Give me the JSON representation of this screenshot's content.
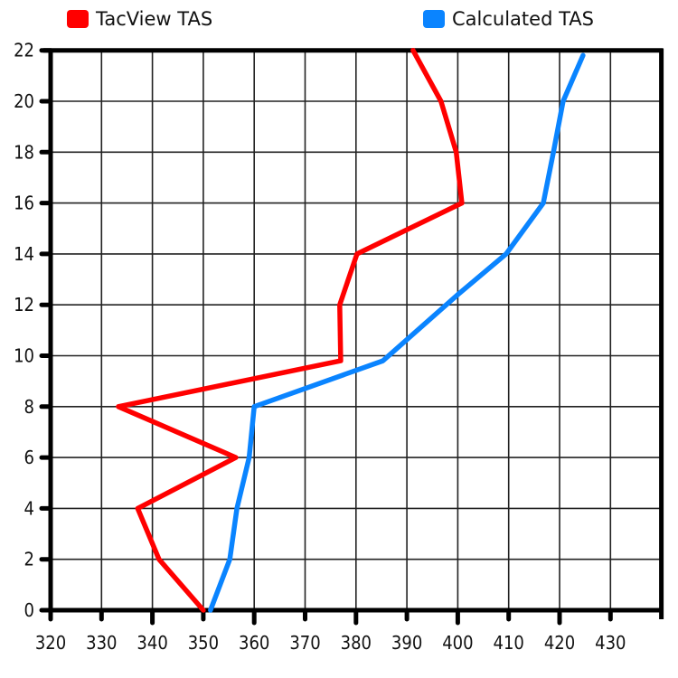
{
  "chart_data": {
    "type": "line",
    "title": "",
    "xlabel": "",
    "ylabel": "",
    "xlim": [
      320,
      440
    ],
    "ylim": [
      0,
      22
    ],
    "x_ticks": [
      320,
      330,
      340,
      350,
      360,
      370,
      380,
      390,
      400,
      410,
      420,
      430
    ],
    "y_ticks": [
      0,
      2,
      4,
      6,
      8,
      10,
      12,
      14,
      16,
      18,
      20,
      22
    ],
    "grid": true,
    "legend_position": "top",
    "series": [
      {
        "name": "TacView TAS",
        "color": "#ff0000",
        "points": [
          {
            "x": 350,
            "y": 0
          },
          {
            "x": 341.3,
            "y": 2
          },
          {
            "x": 337.1,
            "y": 4
          },
          {
            "x": 356.4,
            "y": 6
          },
          {
            "x": 333.3,
            "y": 8
          },
          {
            "x": 377,
            "y": 9.8
          },
          {
            "x": 376.8,
            "y": 12
          },
          {
            "x": 380.2,
            "y": 14
          },
          {
            "x": 400.8,
            "y": 16
          },
          {
            "x": 399.7,
            "y": 18
          },
          {
            "x": 396.7,
            "y": 20
          },
          {
            "x": 391.2,
            "y": 22
          }
        ]
      },
      {
        "name": "Calculated TAS",
        "color": "#0a84ff",
        "points": [
          {
            "x": 351.4,
            "y": 0
          },
          {
            "x": 355.2,
            "y": 2
          },
          {
            "x": 356.6,
            "y": 4
          },
          {
            "x": 359,
            "y": 6
          },
          {
            "x": 360,
            "y": 8
          },
          {
            "x": 385.3,
            "y": 9.8
          },
          {
            "x": 400,
            "y": 12.4
          },
          {
            "x": 409.5,
            "y": 14
          },
          {
            "x": 416.8,
            "y": 16
          },
          {
            "x": 418.8,
            "y": 18
          },
          {
            "x": 420.7,
            "y": 20
          },
          {
            "x": 424.6,
            "y": 21.8
          }
        ]
      }
    ]
  },
  "legend": {
    "items": [
      {
        "label": "TacView TAS",
        "color": "#ff0000"
      },
      {
        "label": "Calculated TAS",
        "color": "#0a84ff"
      }
    ]
  }
}
